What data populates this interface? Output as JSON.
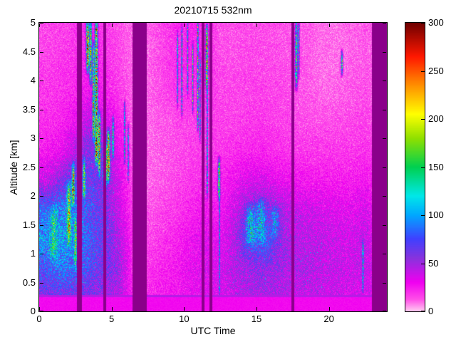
{
  "chart_data": {
    "type": "heatmap",
    "title": "20210715 532nm",
    "xlabel": "UTC Time",
    "ylabel": "Altitude [km]",
    "x_range": [
      0,
      24
    ],
    "y_range": [
      0,
      5
    ],
    "value_range": [
      0,
      300
    ],
    "x_ticks": [
      "0",
      "5",
      "10",
      "15",
      "20"
    ],
    "y_ticks": [
      "0",
      "0.5",
      "1",
      "1.5",
      "2",
      "2.5",
      "3",
      "3.5",
      "4",
      "4.5",
      "5"
    ],
    "colorbar_ticks": [
      "0",
      "50",
      "100",
      "150",
      "200",
      "250",
      "300"
    ],
    "grid": {
      "x0": 0.5,
      "dx": 1.0,
      "y0": 0.25,
      "dy": 0.5,
      "orientation": "rows_bottom_to_top",
      "values": [
        [
          55,
          60,
          60,
          55,
          50,
          45,
          20,
          20,
          25,
          25,
          30,
          30,
          35,
          40,
          45,
          45,
          45,
          40,
          40,
          40,
          38,
          35,
          35,
          30
        ],
        [
          75,
          85,
          80,
          70,
          60,
          50,
          20,
          18,
          22,
          25,
          30,
          35,
          35,
          45,
          50,
          55,
          50,
          45,
          45,
          42,
          40,
          38,
          40,
          30
        ],
        [
          95,
          100,
          90,
          75,
          65,
          45,
          18,
          15,
          18,
          22,
          28,
          32,
          30,
          45,
          75,
          85,
          55,
          45,
          42,
          40,
          38,
          36,
          40,
          28
        ],
        [
          80,
          90,
          85,
          70,
          60,
          40,
          15,
          12,
          15,
          18,
          22,
          25,
          25,
          40,
          55,
          60,
          50,
          40,
          38,
          35,
          33,
          32,
          35,
          25
        ],
        [
          40,
          55,
          70,
          65,
          55,
          35,
          12,
          10,
          12,
          15,
          18,
          20,
          22,
          28,
          35,
          35,
          30,
          28,
          25,
          25,
          24,
          24,
          26,
          20
        ],
        [
          25,
          30,
          45,
          60,
          50,
          30,
          10,
          10,
          12,
          14,
          16,
          18,
          18,
          20,
          22,
          22,
          20,
          18,
          18,
          18,
          18,
          18,
          20,
          15
        ],
        [
          20,
          22,
          30,
          45,
          35,
          25,
          10,
          10,
          12,
          14,
          16,
          16,
          16,
          16,
          18,
          18,
          16,
          15,
          14,
          14,
          14,
          15,
          16,
          12
        ],
        [
          18,
          20,
          22,
          30,
          25,
          18,
          10,
          10,
          14,
          18,
          20,
          18,
          15,
          15,
          16,
          16,
          15,
          14,
          12,
          10,
          10,
          12,
          14,
          10
        ],
        [
          16,
          18,
          20,
          25,
          20,
          15,
          10,
          10,
          15,
          20,
          22,
          20,
          14,
          14,
          15,
          15,
          14,
          13,
          12,
          9,
          9,
          11,
          12,
          10
        ],
        [
          15,
          16,
          18,
          22,
          18,
          14,
          10,
          10,
          15,
          20,
          22,
          20,
          13,
          13,
          14,
          14,
          13,
          12,
          12,
          9,
          9,
          10,
          12,
          10
        ]
      ]
    },
    "gaps": [
      [
        2.62,
        2.95
      ],
      [
        4.42,
        4.6
      ],
      [
        6.45,
        7.42
      ],
      [
        11.2,
        11.42
      ],
      [
        11.75,
        11.95
      ],
      [
        17.42,
        17.6
      ],
      [
        22.95,
        24
      ]
    ],
    "gap_color": "#8a008a",
    "bottom_band": {
      "top_km": 0.29,
      "value": 28,
      "line_value": 44
    },
    "features": [
      {
        "x": 1.0,
        "y0": 0.9,
        "y1": 1.8,
        "w": 0.22,
        "v": 60
      },
      {
        "x": 2.05,
        "y0": 1.2,
        "y1": 2.2,
        "w": 0.12,
        "v": 130
      },
      {
        "x": 2.35,
        "y0": 1.9,
        "y1": 2.5,
        "w": 0.08,
        "v": 210
      },
      {
        "x": 2.5,
        "y0": 0.8,
        "y1": 1.6,
        "w": 0.07,
        "v": 140
      },
      {
        "x": 3.1,
        "y0": 2.0,
        "y1": 2.6,
        "w": 0.07,
        "v": 150
      },
      {
        "x": 3.35,
        "y0": 4.2,
        "y1": 5.0,
        "w": 0.09,
        "v": 260
      },
      {
        "x": 3.55,
        "y0": 4.0,
        "y1": 5.0,
        "w": 0.07,
        "v": 220
      },
      {
        "x": 3.75,
        "y0": 3.0,
        "y1": 4.6,
        "w": 0.07,
        "v": 180
      },
      {
        "x": 3.95,
        "y0": 2.6,
        "y1": 5.0,
        "w": 0.09,
        "v": 240
      },
      {
        "x": 4.15,
        "y0": 2.4,
        "y1": 3.4,
        "w": 0.07,
        "v": 200
      },
      {
        "x": 4.55,
        "y0": 2.2,
        "y1": 2.9,
        "w": 0.1,
        "v": 260
      },
      {
        "x": 4.78,
        "y0": 2.3,
        "y1": 3.1,
        "w": 0.09,
        "v": 230
      },
      {
        "x": 5.1,
        "y0": 2.7,
        "y1": 3.3,
        "w": 0.06,
        "v": 150
      },
      {
        "x": 5.9,
        "y0": 2.6,
        "y1": 3.6,
        "w": 0.05,
        "v": 110
      },
      {
        "x": 6.15,
        "y0": 2.3,
        "y1": 3.2,
        "w": 0.05,
        "v": 100
      },
      {
        "x": 9.55,
        "y0": 3.6,
        "y1": 4.8,
        "w": 0.04,
        "v": 110
      },
      {
        "x": 9.85,
        "y0": 3.4,
        "y1": 4.9,
        "w": 0.04,
        "v": 130
      },
      {
        "x": 10.25,
        "y0": 3.8,
        "y1": 5.0,
        "w": 0.04,
        "v": 120
      },
      {
        "x": 10.6,
        "y0": 3.5,
        "y1": 4.6,
        "w": 0.04,
        "v": 140
      },
      {
        "x": 10.95,
        "y0": 3.2,
        "y1": 5.0,
        "w": 0.05,
        "v": 160
      },
      {
        "x": 11.1,
        "y0": 3.0,
        "y1": 4.4,
        "w": 0.04,
        "v": 130
      },
      {
        "x": 11.58,
        "y0": 3.9,
        "y1": 4.9,
        "w": 0.07,
        "v": 260
      },
      {
        "x": 11.6,
        "y0": 2.0,
        "y1": 3.9,
        "w": 0.04,
        "v": 130
      },
      {
        "x": 12.42,
        "y0": 2.0,
        "y1": 2.6,
        "w": 0.07,
        "v": 220
      },
      {
        "x": 12.45,
        "y0": 0.3,
        "y1": 2.0,
        "w": 0.04,
        "v": 85
      },
      {
        "x": 14.6,
        "y0": 1.2,
        "y1": 1.8,
        "w": 0.3,
        "v": 60
      },
      {
        "x": 15.3,
        "y0": 1.3,
        "y1": 1.9,
        "w": 0.3,
        "v": 55
      },
      {
        "x": 16.3,
        "y0": 1.3,
        "y1": 1.8,
        "w": 0.25,
        "v": 50
      },
      {
        "x": 17.75,
        "y0": 3.9,
        "y1": 5.0,
        "w": 0.08,
        "v": 170
      },
      {
        "x": 17.92,
        "y0": 4.1,
        "y1": 5.0,
        "w": 0.05,
        "v": 120
      },
      {
        "x": 20.9,
        "y0": 4.15,
        "y1": 4.45,
        "w": 0.06,
        "v": 200
      },
      {
        "x": 22.35,
        "y0": 0.4,
        "y1": 1.2,
        "w": 0.05,
        "v": 100
      }
    ],
    "colormap": [
      [
        0,
        "#ffc8f0"
      ],
      [
        12,
        "#ff50e8"
      ],
      [
        30,
        "#f000f0"
      ],
      [
        55,
        "#8833dd"
      ],
      [
        75,
        "#4040ff"
      ],
      [
        100,
        "#00a8ff"
      ],
      [
        120,
        "#00e8e8"
      ],
      [
        150,
        "#00d050"
      ],
      [
        180,
        "#90e000"
      ],
      [
        205,
        "#ffff00"
      ],
      [
        235,
        "#ff9000"
      ],
      [
        265,
        "#ff1800"
      ],
      [
        300,
        "#700000"
      ]
    ],
    "noise_seed": 42
  }
}
